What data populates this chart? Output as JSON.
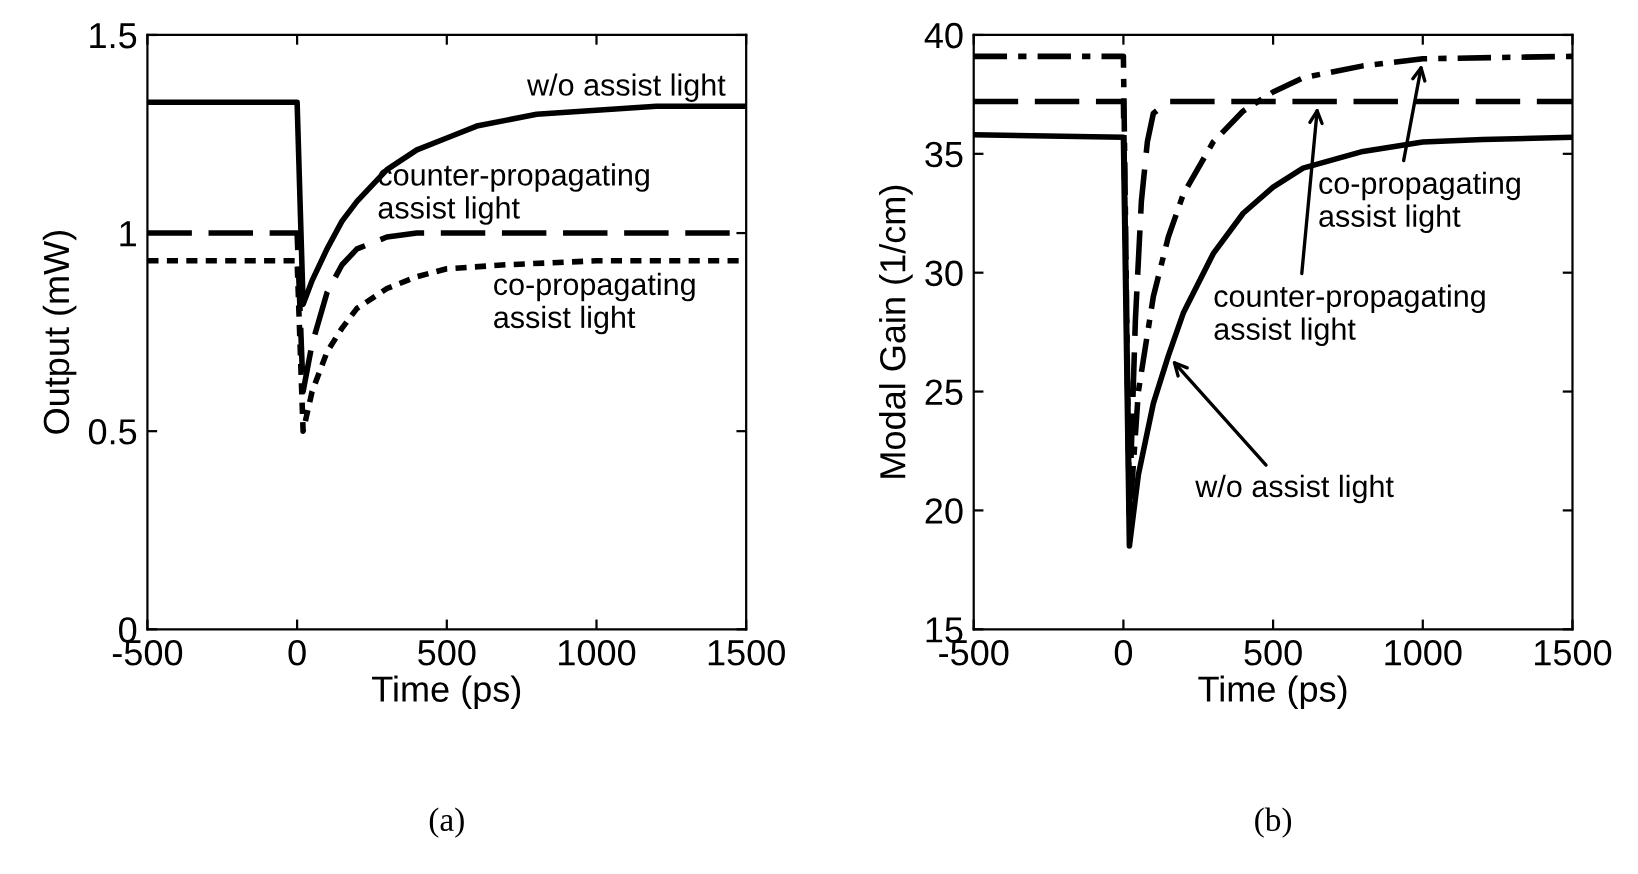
{
  "chart_data": [
    {
      "type": "line",
      "xlabel": "Time (ps)",
      "ylabel": "Output (mW)",
      "xlim": [
        -500,
        1500
      ],
      "xticks": [
        -500,
        0,
        500,
        1000,
        1500
      ],
      "ylim": [
        0,
        1.5
      ],
      "yticks": [
        0,
        0.5,
        1,
        1.5
      ],
      "grid": false,
      "legend": false,
      "series": [
        {
          "color": "#000000",
          "line_style": "solid",
          "x": [
            -500,
            -10,
            0,
            20,
            50,
            100,
            150,
            200,
            300,
            400,
            500,
            600,
            800,
            1000,
            1200,
            1500
          ],
          "values": [
            1.33,
            1.33,
            1.33,
            0.82,
            0.88,
            0.96,
            1.03,
            1.08,
            1.16,
            1.21,
            1.24,
            1.27,
            1.3,
            1.31,
            1.32,
            1.32
          ]
        },
        {
          "color": "#000000",
          "line_style": "dashed",
          "x": [
            -500,
            0,
            20,
            50,
            100,
            150,
            200,
            300,
            400,
            1500
          ],
          "values": [
            1.0,
            1.0,
            0.6,
            0.72,
            0.85,
            0.92,
            0.96,
            0.99,
            1.0,
            1.0
          ]
        },
        {
          "color": "#000000",
          "line_style": "dotted",
          "x": [
            -500,
            0,
            20,
            50,
            100,
            150,
            200,
            300,
            400,
            500,
            700,
            1000,
            1500
          ],
          "values": [
            0.93,
            0.93,
            0.5,
            0.6,
            0.7,
            0.76,
            0.81,
            0.86,
            0.89,
            0.91,
            0.92,
            0.93,
            0.93
          ]
        }
      ],
      "annotations": [
        {
          "text": "w/o assist light",
          "x": 1000,
          "y": 1.31
        },
        {
          "text": "counter-propagating\nassist light",
          "x": 500,
          "y": 1.0
        },
        {
          "text": "co-propagating\nassist light",
          "x": 700,
          "y": 0.92
        },
        "(a)"
      ]
    },
    {
      "type": "line",
      "xlabel": "Time (ps)",
      "ylabel": "Modal Gain (1/cm)",
      "xlim": [
        -500,
        1500
      ],
      "xticks": [
        -500,
        0,
        500,
        1000,
        1500
      ],
      "ylim": [
        15,
        40
      ],
      "yticks": [
        15,
        20,
        25,
        30,
        35,
        40
      ],
      "grid": false,
      "legend": false,
      "series": [
        {
          "color": "#000000",
          "line_style": "solid",
          "x": [
            -500,
            0,
            20,
            50,
            100,
            150,
            200,
            300,
            400,
            500,
            600,
            800,
            1000,
            1200,
            1500
          ],
          "values": [
            35.8,
            35.7,
            18.5,
            21.5,
            24.5,
            26.5,
            28.3,
            30.8,
            32.5,
            33.6,
            34.4,
            35.1,
            35.5,
            35.6,
            35.7
          ]
        },
        {
          "color": "#000000",
          "line_style": "dashed",
          "x": [
            -500,
            0,
            20,
            40,
            60,
            80,
            100,
            150,
            1500
          ],
          "values": [
            37.2,
            37.2,
            20,
            28,
            33,
            35.5,
            36.7,
            37.2,
            37.2
          ]
        },
        {
          "color": "#000000",
          "line_style": "dashdot",
          "x": [
            -500,
            0,
            20,
            50,
            100,
            150,
            200,
            300,
            400,
            500,
            600,
            800,
            1000,
            1500
          ],
          "values": [
            39.1,
            39.1,
            19.5,
            25,
            29,
            31.5,
            33.3,
            35.5,
            36.8,
            37.6,
            38.2,
            38.7,
            39.0,
            39.1
          ]
        }
      ],
      "annotations": [
        {
          "text": "co-propagating\nassist light",
          "x": 1000,
          "y": 39.0
        },
        {
          "text": "counter-propagating\nassist light",
          "x": 650,
          "y": 37.2
        },
        {
          "text": "w/o assist light",
          "x": 150,
          "y": 26.5
        },
        "(b)"
      ]
    }
  ]
}
